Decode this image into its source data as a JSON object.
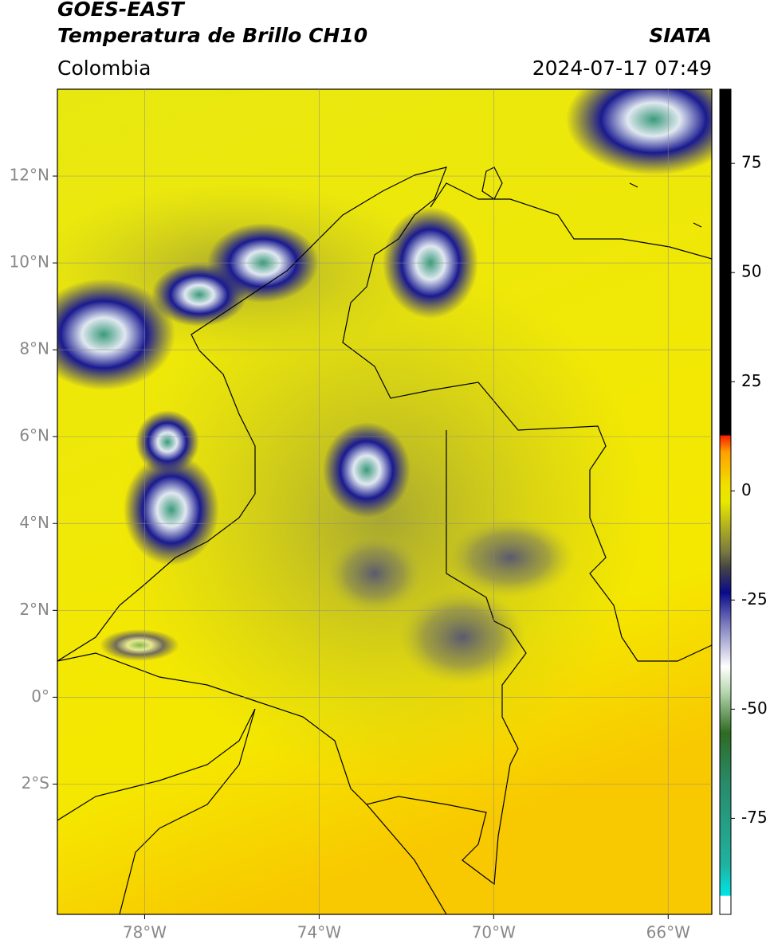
{
  "header": {
    "title": "GOES-EAST",
    "subtitle": "Temperatura de Brillo CH10",
    "region": "Colombia",
    "source": "SIATA",
    "datetime": "2024-07-17 07:49"
  },
  "map": {
    "xlim": [
      -80,
      -65
    ],
    "ylim": [
      -5,
      14
    ],
    "xticks": [
      {
        "value": -78,
        "label": "78°W"
      },
      {
        "value": -74,
        "label": "74°W"
      },
      {
        "value": -70,
        "label": "70°W"
      },
      {
        "value": -66,
        "label": "66°W"
      }
    ],
    "yticks": [
      {
        "value": 12,
        "label": "12°N"
      },
      {
        "value": 10,
        "label": "10°N"
      },
      {
        "value": 8,
        "label": "8°N"
      },
      {
        "value": 6,
        "label": "6°N"
      },
      {
        "value": 4,
        "label": "4°N"
      },
      {
        "value": 2,
        "label": "2°N"
      },
      {
        "value": 0,
        "label": "0°"
      },
      {
        "value": -2,
        "label": "2°S"
      }
    ],
    "grid": true
  },
  "colorbar": {
    "ylim": [
      -97,
      92
    ],
    "yticks": [
      75,
      50,
      25,
      0,
      -25,
      -50,
      -75
    ]
  }
}
